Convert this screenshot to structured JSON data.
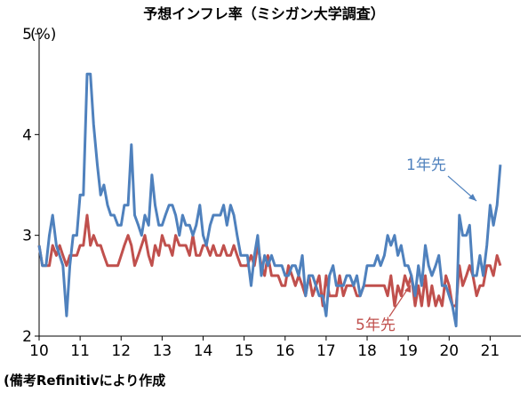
{
  "title": "予想インフレ率（ミシガン大学調査）",
  "footnote": "(備考Refinitivにより作成",
  "chart_data": {
    "type": "line",
    "title": "予想インフレ率（ミシガン大学調査）",
    "y_unit_label": "(%)",
    "ylim": [
      2,
      5
    ],
    "y_ticks": [
      "2",
      "3",
      "4",
      "5"
    ],
    "xlim": [
      2010,
      2021.5
    ],
    "x_ticks": [
      "10",
      "11",
      "12",
      "13",
      "14",
      "15",
      "16",
      "17",
      "18",
      "19",
      "20",
      "21"
    ],
    "grid": false,
    "series": [
      {
        "name": "1年先",
        "color": "#4F81BD",
        "points": [
          [
            2010.0,
            2.9
          ],
          [
            2010.08,
            2.7
          ],
          [
            2010.17,
            2.7
          ],
          [
            2010.25,
            3.0
          ],
          [
            2010.33,
            3.2
          ],
          [
            2010.42,
            2.9
          ],
          [
            2010.5,
            2.8
          ],
          [
            2010.58,
            2.7
          ],
          [
            2010.67,
            2.2
          ],
          [
            2010.75,
            2.7
          ],
          [
            2010.83,
            3.0
          ],
          [
            2010.92,
            3.0
          ],
          [
            2011.0,
            3.4
          ],
          [
            2011.08,
            3.4
          ],
          [
            2011.17,
            4.6
          ],
          [
            2011.25,
            4.6
          ],
          [
            2011.33,
            4.1
          ],
          [
            2011.42,
            3.7
          ],
          [
            2011.5,
            3.4
          ],
          [
            2011.58,
            3.5
          ],
          [
            2011.67,
            3.3
          ],
          [
            2011.75,
            3.2
          ],
          [
            2011.83,
            3.2
          ],
          [
            2011.92,
            3.1
          ],
          [
            2012.0,
            3.1
          ],
          [
            2012.08,
            3.3
          ],
          [
            2012.17,
            3.3
          ],
          [
            2012.25,
            3.9
          ],
          [
            2012.33,
            3.2
          ],
          [
            2012.42,
            3.1
          ],
          [
            2012.5,
            3.0
          ],
          [
            2012.58,
            3.2
          ],
          [
            2012.67,
            3.1
          ],
          [
            2012.75,
            3.6
          ],
          [
            2012.83,
            3.3
          ],
          [
            2012.92,
            3.1
          ],
          [
            2013.0,
            3.1
          ],
          [
            2013.08,
            3.2
          ],
          [
            2013.17,
            3.3
          ],
          [
            2013.25,
            3.3
          ],
          [
            2013.33,
            3.2
          ],
          [
            2013.42,
            3.0
          ],
          [
            2013.5,
            3.2
          ],
          [
            2013.58,
            3.1
          ],
          [
            2013.67,
            3.1
          ],
          [
            2013.75,
            3.0
          ],
          [
            2013.83,
            3.1
          ],
          [
            2013.92,
            3.3
          ],
          [
            2014.0,
            3.0
          ],
          [
            2014.08,
            2.9
          ],
          [
            2014.17,
            3.1
          ],
          [
            2014.25,
            3.2
          ],
          [
            2014.33,
            3.2
          ],
          [
            2014.42,
            3.2
          ],
          [
            2014.5,
            3.3
          ],
          [
            2014.58,
            3.1
          ],
          [
            2014.67,
            3.3
          ],
          [
            2014.75,
            3.2
          ],
          [
            2014.83,
            3.0
          ],
          [
            2014.92,
            2.8
          ],
          [
            2015.0,
            2.8
          ],
          [
            2015.08,
            2.8
          ],
          [
            2015.17,
            2.5
          ],
          [
            2015.25,
            2.8
          ],
          [
            2015.33,
            3.0
          ],
          [
            2015.42,
            2.6
          ],
          [
            2015.5,
            2.8
          ],
          [
            2015.58,
            2.7
          ],
          [
            2015.67,
            2.8
          ],
          [
            2015.75,
            2.7
          ],
          [
            2015.83,
            2.7
          ],
          [
            2015.92,
            2.7
          ],
          [
            2016.0,
            2.6
          ],
          [
            2016.08,
            2.6
          ],
          [
            2016.17,
            2.7
          ],
          [
            2016.25,
            2.7
          ],
          [
            2016.33,
            2.6
          ],
          [
            2016.42,
            2.8
          ],
          [
            2016.5,
            2.4
          ],
          [
            2016.58,
            2.6
          ],
          [
            2016.67,
            2.6
          ],
          [
            2016.75,
            2.5
          ],
          [
            2016.83,
            2.4
          ],
          [
            2016.92,
            2.4
          ],
          [
            2017.0,
            2.2
          ],
          [
            2017.08,
            2.6
          ],
          [
            2017.17,
            2.7
          ],
          [
            2017.25,
            2.5
          ],
          [
            2017.33,
            2.5
          ],
          [
            2017.42,
            2.5
          ],
          [
            2017.5,
            2.6
          ],
          [
            2017.58,
            2.6
          ],
          [
            2017.67,
            2.5
          ],
          [
            2017.75,
            2.6
          ],
          [
            2017.83,
            2.4
          ],
          [
            2017.92,
            2.5
          ],
          [
            2018.0,
            2.7
          ],
          [
            2018.08,
            2.7
          ],
          [
            2018.17,
            2.7
          ],
          [
            2018.25,
            2.8
          ],
          [
            2018.33,
            2.7
          ],
          [
            2018.42,
            2.8
          ],
          [
            2018.5,
            3.0
          ],
          [
            2018.58,
            2.9
          ],
          [
            2018.67,
            3.0
          ],
          [
            2018.75,
            2.8
          ],
          [
            2018.83,
            2.9
          ],
          [
            2018.92,
            2.7
          ],
          [
            2019.0,
            2.7
          ],
          [
            2019.08,
            2.6
          ],
          [
            2019.17,
            2.4
          ],
          [
            2019.25,
            2.7
          ],
          [
            2019.33,
            2.5
          ],
          [
            2019.42,
            2.9
          ],
          [
            2019.5,
            2.7
          ],
          [
            2019.58,
            2.6
          ],
          [
            2019.67,
            2.7
          ],
          [
            2019.75,
            2.8
          ],
          [
            2019.83,
            2.5
          ],
          [
            2019.92,
            2.5
          ],
          [
            2020.0,
            2.4
          ],
          [
            2020.08,
            2.3
          ],
          [
            2020.17,
            2.1
          ],
          [
            2020.25,
            3.2
          ],
          [
            2020.33,
            3.0
          ],
          [
            2020.42,
            3.0
          ],
          [
            2020.5,
            3.1
          ],
          [
            2020.58,
            2.6
          ],
          [
            2020.67,
            2.6
          ],
          [
            2020.75,
            2.8
          ],
          [
            2020.83,
            2.6
          ],
          [
            2020.92,
            2.9
          ],
          [
            2021.0,
            3.3
          ],
          [
            2021.08,
            3.1
          ],
          [
            2021.17,
            3.3
          ],
          [
            2021.25,
            3.7
          ]
        ]
      },
      {
        "name": "5年先",
        "color": "#C0504D",
        "points": [
          [
            2010.0,
            2.9
          ],
          [
            2010.08,
            2.7
          ],
          [
            2010.17,
            2.7
          ],
          [
            2010.25,
            2.7
          ],
          [
            2010.33,
            2.9
          ],
          [
            2010.42,
            2.8
          ],
          [
            2010.5,
            2.9
          ],
          [
            2010.58,
            2.8
          ],
          [
            2010.67,
            2.7
          ],
          [
            2010.75,
            2.8
          ],
          [
            2010.83,
            2.8
          ],
          [
            2010.92,
            2.8
          ],
          [
            2011.0,
            2.9
          ],
          [
            2011.08,
            2.9
          ],
          [
            2011.17,
            3.2
          ],
          [
            2011.25,
            2.9
          ],
          [
            2011.33,
            3.0
          ],
          [
            2011.42,
            2.9
          ],
          [
            2011.5,
            2.9
          ],
          [
            2011.58,
            2.8
          ],
          [
            2011.67,
            2.7
          ],
          [
            2011.75,
            2.7
          ],
          [
            2011.83,
            2.7
          ],
          [
            2011.92,
            2.7
          ],
          [
            2012.0,
            2.8
          ],
          [
            2012.08,
            2.9
          ],
          [
            2012.17,
            3.0
          ],
          [
            2012.25,
            2.9
          ],
          [
            2012.33,
            2.7
          ],
          [
            2012.42,
            2.8
          ],
          [
            2012.5,
            2.9
          ],
          [
            2012.58,
            3.0
          ],
          [
            2012.67,
            2.8
          ],
          [
            2012.75,
            2.7
          ],
          [
            2012.83,
            2.9
          ],
          [
            2012.92,
            2.8
          ],
          [
            2013.0,
            3.0
          ],
          [
            2013.08,
            2.9
          ],
          [
            2013.17,
            2.9
          ],
          [
            2013.25,
            2.8
          ],
          [
            2013.33,
            3.0
          ],
          [
            2013.42,
            2.9
          ],
          [
            2013.5,
            2.9
          ],
          [
            2013.58,
            2.9
          ],
          [
            2013.67,
            2.8
          ],
          [
            2013.75,
            3.0
          ],
          [
            2013.83,
            2.8
          ],
          [
            2013.92,
            2.8
          ],
          [
            2014.0,
            2.9
          ],
          [
            2014.08,
            2.9
          ],
          [
            2014.17,
            2.8
          ],
          [
            2014.25,
            2.9
          ],
          [
            2014.33,
            2.8
          ],
          [
            2014.42,
            2.8
          ],
          [
            2014.5,
            2.9
          ],
          [
            2014.58,
            2.8
          ],
          [
            2014.67,
            2.8
          ],
          [
            2014.75,
            2.9
          ],
          [
            2014.83,
            2.8
          ],
          [
            2014.92,
            2.7
          ],
          [
            2015.0,
            2.7
          ],
          [
            2015.08,
            2.7
          ],
          [
            2015.17,
            2.8
          ],
          [
            2015.25,
            2.7
          ],
          [
            2015.33,
            2.9
          ],
          [
            2015.42,
            2.7
          ],
          [
            2015.5,
            2.6
          ],
          [
            2015.58,
            2.8
          ],
          [
            2015.67,
            2.6
          ],
          [
            2015.75,
            2.6
          ],
          [
            2015.83,
            2.6
          ],
          [
            2015.92,
            2.5
          ],
          [
            2016.0,
            2.5
          ],
          [
            2016.08,
            2.7
          ],
          [
            2016.17,
            2.6
          ],
          [
            2016.25,
            2.5
          ],
          [
            2016.33,
            2.6
          ],
          [
            2016.42,
            2.5
          ],
          [
            2016.5,
            2.4
          ],
          [
            2016.58,
            2.6
          ],
          [
            2016.67,
            2.4
          ],
          [
            2016.75,
            2.5
          ],
          [
            2016.83,
            2.6
          ],
          [
            2016.92,
            2.3
          ],
          [
            2017.0,
            2.6
          ],
          [
            2017.08,
            2.4
          ],
          [
            2017.17,
            2.4
          ],
          [
            2017.25,
            2.4
          ],
          [
            2017.33,
            2.6
          ],
          [
            2017.42,
            2.4
          ],
          [
            2017.5,
            2.5
          ],
          [
            2017.58,
            2.5
          ],
          [
            2017.67,
            2.5
          ],
          [
            2017.75,
            2.4
          ],
          [
            2017.83,
            2.4
          ],
          [
            2017.92,
            2.5
          ],
          [
            2018.0,
            2.5
          ],
          [
            2018.08,
            2.5
          ],
          [
            2018.17,
            2.5
          ],
          [
            2018.25,
            2.5
          ],
          [
            2018.33,
            2.5
          ],
          [
            2018.42,
            2.5
          ],
          [
            2018.5,
            2.4
          ],
          [
            2018.58,
            2.6
          ],
          [
            2018.67,
            2.3
          ],
          [
            2018.75,
            2.5
          ],
          [
            2018.83,
            2.4
          ],
          [
            2018.92,
            2.6
          ],
          [
            2019.0,
            2.5
          ],
          [
            2019.08,
            2.6
          ],
          [
            2019.17,
            2.3
          ],
          [
            2019.25,
            2.5
          ],
          [
            2019.33,
            2.3
          ],
          [
            2019.42,
            2.6
          ],
          [
            2019.5,
            2.3
          ],
          [
            2019.58,
            2.5
          ],
          [
            2019.67,
            2.3
          ],
          [
            2019.75,
            2.4
          ],
          [
            2019.83,
            2.3
          ],
          [
            2019.92,
            2.6
          ],
          [
            2020.0,
            2.5
          ],
          [
            2020.08,
            2.3
          ],
          [
            2020.17,
            2.3
          ],
          [
            2020.25,
            2.7
          ],
          [
            2020.33,
            2.5
          ],
          [
            2020.42,
            2.6
          ],
          [
            2020.5,
            2.7
          ],
          [
            2020.58,
            2.6
          ],
          [
            2020.67,
            2.4
          ],
          [
            2020.75,
            2.5
          ],
          [
            2020.83,
            2.5
          ],
          [
            2020.92,
            2.7
          ],
          [
            2021.0,
            2.7
          ],
          [
            2021.08,
            2.6
          ],
          [
            2021.17,
            2.8
          ],
          [
            2021.25,
            2.7
          ]
        ]
      }
    ]
  }
}
